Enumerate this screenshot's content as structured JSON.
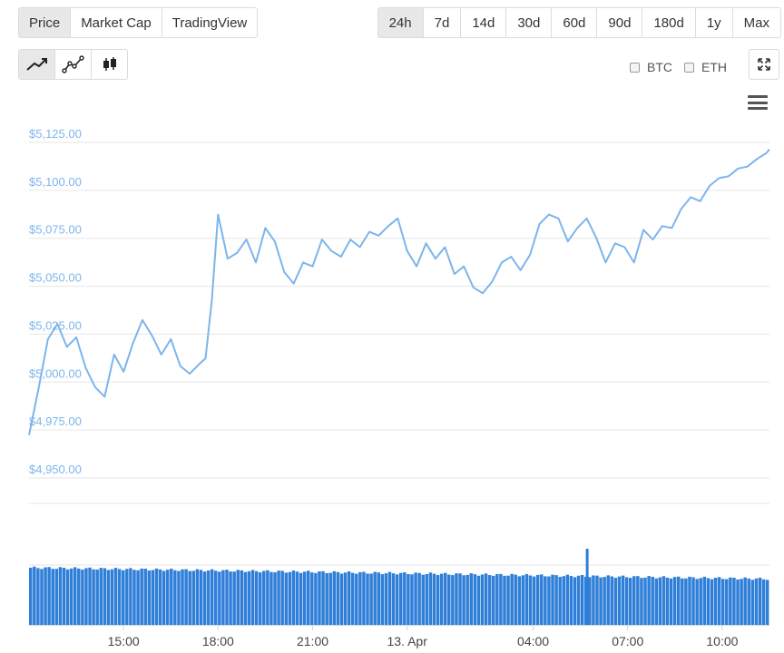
{
  "view_tabs": [
    {
      "label": "Price",
      "active": true
    },
    {
      "label": "Market Cap",
      "active": false
    },
    {
      "label": "TradingView",
      "active": false
    }
  ],
  "range_tabs": [
    {
      "label": "24h",
      "active": true
    },
    {
      "label": "7d",
      "active": false
    },
    {
      "label": "14d",
      "active": false
    },
    {
      "label": "30d",
      "active": false
    },
    {
      "label": "60d",
      "active": false
    },
    {
      "label": "90d",
      "active": false
    },
    {
      "label": "180d",
      "active": false
    },
    {
      "label": "1y",
      "active": false
    },
    {
      "label": "Max",
      "active": false
    }
  ],
  "chart_type_buttons": [
    {
      "icon": "line-chart-icon",
      "active": true
    },
    {
      "icon": "smooth-line-chart-icon",
      "active": false
    },
    {
      "icon": "candlestick-icon",
      "active": false
    }
  ],
  "compare": {
    "btc_label": "BTC",
    "eth_label": "ETH",
    "btc_checked": false,
    "eth_checked": false
  },
  "icons": {
    "expand": "expand-icon",
    "menu": "hamburger-menu-icon"
  },
  "colors": {
    "line": "#7cb5ec",
    "volume": "#2f7ed8",
    "active_tab_bg": "#e8e8e8",
    "grid": "#e6e6e6"
  },
  "chart_data": [
    {
      "type": "line",
      "y_tick_labels": [
        "$5,125.00",
        "$5,100.00",
        "$5,075.00",
        "$5,050.00",
        "$5,025.00",
        "$5,000.00",
        "$4,975.00",
        "$4,950.00"
      ],
      "y_ticks": [
        5125,
        5100,
        5075,
        5050,
        5025,
        5000,
        4975,
        4950
      ],
      "ylim": [
        4950,
        5125
      ],
      "x_tick_labels": [
        "15:00",
        "18:00",
        "21:00",
        "13. Apr",
        "04:00",
        "07:00",
        "10:00"
      ],
      "x_ticks_hours": [
        3,
        6,
        9,
        12,
        16,
        19,
        22
      ],
      "x_range_hours": [
        0,
        23.5
      ],
      "series": [
        {
          "x": [
            0,
            0.3,
            0.6,
            0.9,
            1.2,
            1.5,
            1.8,
            2.1,
            2.4,
            2.7,
            3.0,
            3.3,
            3.6,
            3.9,
            4.2,
            4.5,
            4.8,
            5.1,
            5.4,
            5.6,
            5.8,
            6.0,
            6.3,
            6.6,
            6.9,
            7.2,
            7.5,
            7.8,
            8.1,
            8.4,
            8.7,
            9.0,
            9.3,
            9.6,
            9.9,
            10.2,
            10.5,
            10.8,
            11.1,
            11.4,
            11.7,
            12.0,
            12.3,
            12.6,
            12.9,
            13.2,
            13.5,
            13.8,
            14.1,
            14.4,
            14.7,
            15.0,
            15.3,
            15.6,
            15.9,
            16.2,
            16.5,
            16.8,
            17.1,
            17.4,
            17.7,
            18.0,
            18.3,
            18.6,
            18.9,
            19.2,
            19.5,
            19.8,
            20.1,
            20.4,
            20.7,
            21.0,
            21.3,
            21.6,
            21.9,
            22.2,
            22.5,
            22.8,
            23.1,
            23.4,
            23.5
          ],
          "values": [
            4970,
            4994,
            5020,
            5028,
            5016,
            5021,
            5005,
            4995,
            4990,
            5012,
            5003,
            5018,
            5030,
            5022,
            5012,
            5020,
            5006,
            5002,
            5007,
            5010,
            5040,
            5085,
            5062,
            5065,
            5072,
            5060,
            5078,
            5071,
            5055,
            5049,
            5060,
            5058,
            5072,
            5066,
            5063,
            5072,
            5068,
            5076,
            5074,
            5079,
            5083,
            5066,
            5058,
            5070,
            5062,
            5068,
            5054,
            5058,
            5047,
            5044,
            5050,
            5060,
            5063,
            5056,
            5064,
            5080,
            5085,
            5083,
            5071,
            5078,
            5083,
            5073,
            5060,
            5070,
            5068,
            5060,
            5077,
            5072,
            5079,
            5078,
            5088,
            5094,
            5092,
            5100,
            5104,
            5105,
            5109,
            5110,
            5114,
            5117,
            5119
          ]
        }
      ]
    },
    {
      "type": "bar",
      "name": "volume",
      "description_values_relative": true,
      "values_start": 0.97,
      "values_end": 0.78,
      "spike_at_hour": 17.7,
      "spike_value": 1.0
    }
  ]
}
